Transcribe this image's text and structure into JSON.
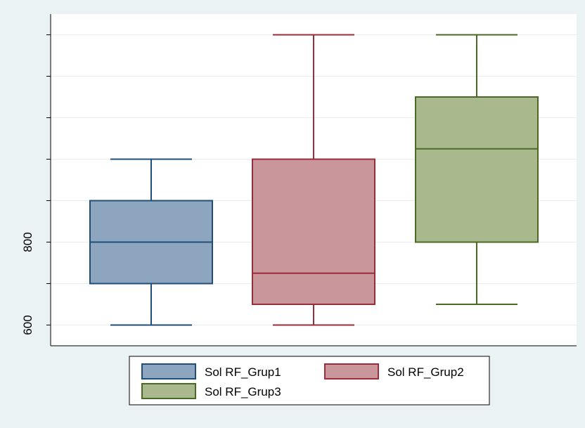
{
  "chart_data": {
    "type": "box",
    "ylim": [
      550,
      1350
    ],
    "yticks": [
      600,
      700,
      800,
      900,
      1000,
      1100,
      1200,
      1300
    ],
    "ytick_labels": [
      "600",
      "",
      "800",
      "",
      "",
      "",
      "",
      ""
    ],
    "grid": true,
    "legend_position": "bottom",
    "series": [
      {
        "name": "Sol RF_Grup1",
        "color": "#8da5bf",
        "edge": "#1f4e79",
        "whisker_low": 600,
        "q1": 700,
        "median": 800,
        "q3": 900,
        "whisker_high": 1000
      },
      {
        "name": "Sol RF_Grup2",
        "color": "#c9979b",
        "edge": "#9b2c3a",
        "whisker_low": 600,
        "q1": 650,
        "median": 725,
        "q3": 1000,
        "whisker_high": 1300
      },
      {
        "name": "Sol RF_Grup3",
        "color": "#a9b98d",
        "edge": "#4a6a23",
        "whisker_low": 650,
        "q1": 800,
        "median": 1025,
        "q3": 1150,
        "whisker_high": 1300
      }
    ]
  }
}
